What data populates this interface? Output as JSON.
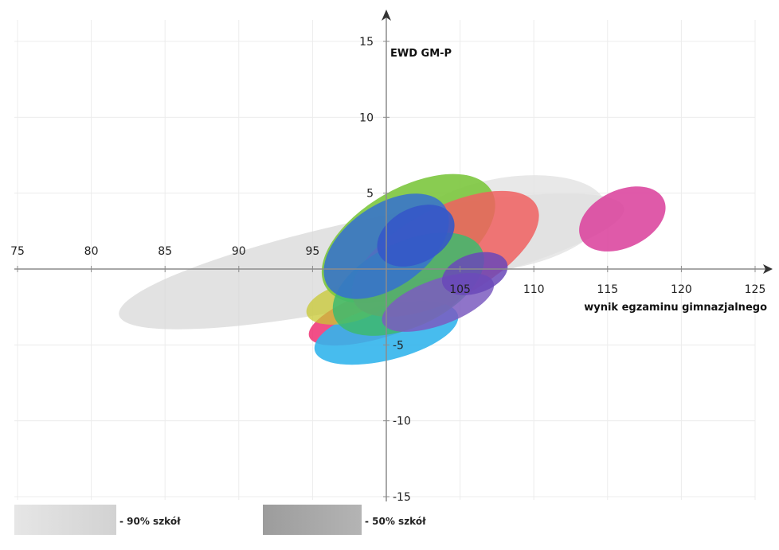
{
  "chart_data": {
    "type": "scatter",
    "subtype": "ellipse-regions",
    "xlabel": "wynik egzaminu gimnazjalnego",
    "ylabel": "EWD GM-P",
    "xlim": [
      75,
      125
    ],
    "ylim": [
      -15,
      15
    ],
    "x_ticks": [
      75,
      80,
      85,
      90,
      95,
      100,
      105,
      110,
      115,
      120,
      125
    ],
    "x_tick_labels": [
      "75",
      "80",
      "85",
      "90",
      "95",
      "",
      "105",
      "110",
      "115",
      "120",
      "125"
    ],
    "y_ticks": [
      -15,
      -10,
      -5,
      0,
      5,
      10,
      15
    ],
    "y_tick_labels": [
      "-15",
      "-10",
      "-5",
      "",
      "5",
      "10",
      "15"
    ],
    "grid": true,
    "legend_position": "bottom-left",
    "legend": [
      {
        "label": "- 90% szkół",
        "color": "#dcdcdc"
      },
      {
        "label": "- 50% szkół",
        "color": "#a8a8a8"
      }
    ],
    "regions": [
      {
        "cx": 99,
        "cy": 0.5,
        "rx": 17.5,
        "ry": 2.8,
        "angle": 12,
        "color": "#d8d8d8",
        "opacity": 0.75
      },
      {
        "cx": 108,
        "cy": 3,
        "rx": 7,
        "ry": 3,
        "angle": 10,
        "color": "#e2e2e2",
        "opacity": 0.8
      },
      {
        "cx": 100,
        "cy": -2.8,
        "rx": 5.5,
        "ry": 1.6,
        "angle": 18,
        "color": "#ee2f72",
        "opacity": 0.85
      },
      {
        "cx": 100,
        "cy": -4.2,
        "rx": 5,
        "ry": 1.8,
        "angle": 14,
        "color": "#33b5ec",
        "opacity": 0.9
      },
      {
        "cx": 97.5,
        "cy": -2.2,
        "rx": 3,
        "ry": 1.3,
        "angle": 15,
        "color": "#c8c832",
        "opacity": 0.75
      },
      {
        "cx": 101.5,
        "cy": 2,
        "rx": 6.5,
        "ry": 3.3,
        "angle": 30,
        "color": "#7cc63e",
        "opacity": 0.9
      },
      {
        "cx": 104,
        "cy": 1,
        "rx": 7,
        "ry": 3,
        "angle": 28,
        "color": "#f06060",
        "opacity": 0.85
      },
      {
        "cx": 101.5,
        "cy": -1,
        "rx": 5.5,
        "ry": 2.8,
        "angle": 25,
        "color": "#3dba6e",
        "opacity": 0.85
      },
      {
        "cx": 100,
        "cy": 1.5,
        "rx": 4.8,
        "ry": 2.7,
        "angle": 35,
        "color": "#3570d0",
        "opacity": 0.85
      },
      {
        "cx": 103.5,
        "cy": -2.2,
        "rx": 4,
        "ry": 1.5,
        "angle": 20,
        "color": "#7b5cc0",
        "opacity": 0.85
      },
      {
        "cx": 106,
        "cy": -0.3,
        "rx": 2.3,
        "ry": 1.3,
        "angle": 18,
        "color": "#6a48b8",
        "opacity": 0.85
      },
      {
        "cx": 102,
        "cy": 2.2,
        "rx": 2.8,
        "ry": 1.8,
        "angle": 28,
        "color": "#3558c8",
        "opacity": 0.9
      },
      {
        "cx": 116,
        "cy": 3.3,
        "rx": 3.1,
        "ry": 1.9,
        "angle": 25,
        "color": "#dc48a0",
        "opacity": 0.9
      }
    ]
  }
}
